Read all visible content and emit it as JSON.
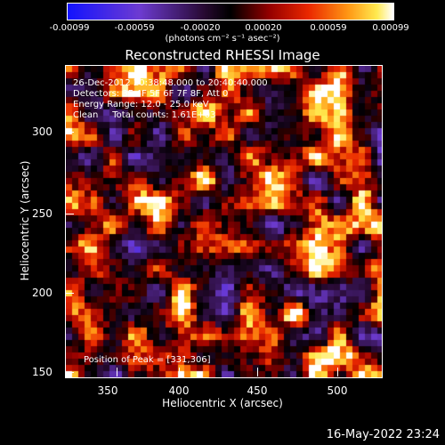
{
  "colorbar": {
    "tick_labels": [
      "-0.00099",
      "-0.00059",
      "-0.00020",
      "0.00020",
      "0.00059",
      "0.00099"
    ],
    "units": "(photons cm⁻² s⁻¹ asec⁻²)"
  },
  "image": {
    "title": "Reconstructed RHESSI Image",
    "info_lines": [
      "26-Dec-2012 20:38:48.000 to 20:40:40.000",
      "Detectors: 3F 4F 5F 6F 7F 8F, Att 0",
      "Energy Range: 12.0 - 25.0 keV",
      "Clean     Total counts: 1.61E+03"
    ],
    "peak_text": "Position of Peak = [331,306]"
  },
  "axes": {
    "xlabel": "Heliocentric X (arcsec)",
    "ylabel": "Heliocentric Y (arcsec)",
    "xticks": [
      "350",
      "400",
      "450",
      "500"
    ],
    "yticks": [
      "300",
      "250",
      "200",
      "150"
    ]
  },
  "timestamp": "16-May-2022 23:24"
}
